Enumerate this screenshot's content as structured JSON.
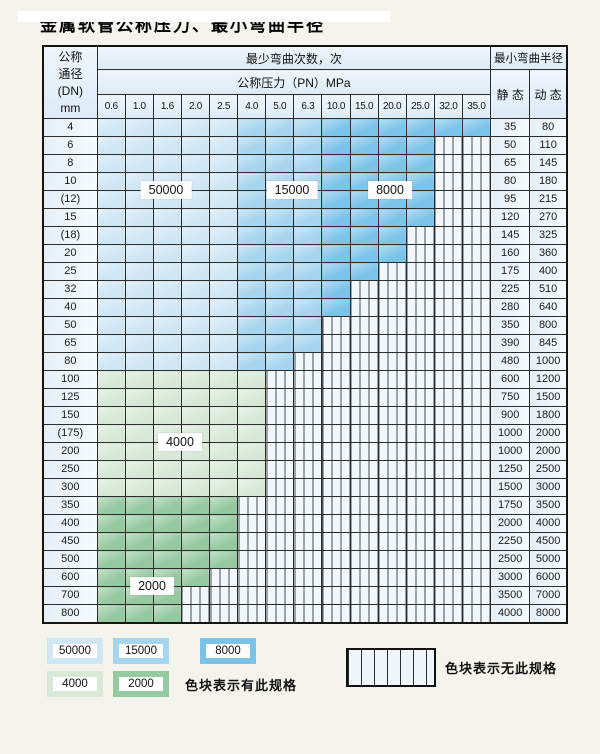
{
  "title": "金属软管公称压力、最小弯曲半径",
  "colors": {
    "50000": "#cfe6f5",
    "15000": "#a6d5ef",
    "8000": "#7cc3e9",
    "4000": "#d7e9d6",
    "2000": "#95c9a0",
    "grid_line": "#2c2c2c",
    "hatch_bg": "#f2f7fc"
  },
  "table": {
    "corner": {
      "line1": "公称",
      "line2": "通径",
      "line3": "(DN)",
      "line4": "mm"
    },
    "bend_cycles_header": "最少弯曲次数，次",
    "pressure_header": "公称压力（PN）MPa",
    "radius_header": "最小弯曲半径",
    "static_header": "静 态",
    "dynamic_header": "动 态",
    "pressure_columns": [
      "0.6",
      "1.0",
      "1.6",
      "2.0",
      "2.5",
      "4.0",
      "5.0",
      "6.3",
      "10.0",
      "15.0",
      "20.0",
      "25.0",
      "32.0",
      "35.0"
    ],
    "blue_zones": [
      {
        "upto": 4,
        "cycles": "50000"
      },
      {
        "upto": 7,
        "cycles": "15000"
      },
      {
        "upto": 13,
        "cycles": "8000"
      }
    ],
    "rows": [
      {
        "dn": "4",
        "max": 13,
        "zone": "blue",
        "static": "35",
        "dynamic": "80"
      },
      {
        "dn": "6",
        "max": 11,
        "zone": "blue",
        "static": "50",
        "dynamic": "110"
      },
      {
        "dn": "8",
        "max": 11,
        "zone": "blue",
        "static": "65",
        "dynamic": "145"
      },
      {
        "dn": "10",
        "max": 11,
        "zone": "blue",
        "static": "80",
        "dynamic": "180"
      },
      {
        "dn": "(12)",
        "max": 11,
        "zone": "blue",
        "static": "95",
        "dynamic": "215"
      },
      {
        "dn": "15",
        "max": 11,
        "zone": "blue",
        "static": "120",
        "dynamic": "270"
      },
      {
        "dn": "(18)",
        "max": 10,
        "zone": "blue",
        "static": "145",
        "dynamic": "325"
      },
      {
        "dn": "20",
        "max": 10,
        "zone": "blue",
        "static": "160",
        "dynamic": "360"
      },
      {
        "dn": "25",
        "max": 9,
        "zone": "blue",
        "static": "175",
        "dynamic": "400"
      },
      {
        "dn": "32",
        "max": 8,
        "zone": "blue",
        "static": "225",
        "dynamic": "510"
      },
      {
        "dn": "40",
        "max": 8,
        "zone": "blue",
        "static": "280",
        "dynamic": "640"
      },
      {
        "dn": "50",
        "max": 7,
        "zone": "blue",
        "static": "350",
        "dynamic": "800"
      },
      {
        "dn": "65",
        "max": 7,
        "zone": "blue",
        "static": "390",
        "dynamic": "845"
      },
      {
        "dn": "80",
        "max": 6,
        "zone": "blue",
        "static": "480",
        "dynamic": "1000"
      },
      {
        "dn": "100",
        "max": 5,
        "zone": "4000",
        "static": "600",
        "dynamic": "1200"
      },
      {
        "dn": "125",
        "max": 5,
        "zone": "4000",
        "static": "750",
        "dynamic": "1500"
      },
      {
        "dn": "150",
        "max": 5,
        "zone": "4000",
        "static": "900",
        "dynamic": "1800"
      },
      {
        "dn": "(175)",
        "max": 5,
        "zone": "4000",
        "static": "1000",
        "dynamic": "2000"
      },
      {
        "dn": "200",
        "max": 5,
        "zone": "4000",
        "static": "1000",
        "dynamic": "2000"
      },
      {
        "dn": "250",
        "max": 5,
        "zone": "4000",
        "static": "1250",
        "dynamic": "2500"
      },
      {
        "dn": "300",
        "max": 5,
        "zone": "4000",
        "static": "1500",
        "dynamic": "3000"
      },
      {
        "dn": "350",
        "max": 4,
        "zone": "2000",
        "static": "1750",
        "dynamic": "3500"
      },
      {
        "dn": "400",
        "max": 4,
        "zone": "2000",
        "static": "2000",
        "dynamic": "4000"
      },
      {
        "dn": "450",
        "max": 4,
        "zone": "2000",
        "static": "2250",
        "dynamic": "4500"
      },
      {
        "dn": "500",
        "max": 4,
        "zone": "2000",
        "static": "2500",
        "dynamic": "5000"
      },
      {
        "dn": "600",
        "max": 3,
        "zone": "2000",
        "static": "3000",
        "dynamic": "6000"
      },
      {
        "dn": "700",
        "max": 2,
        "zone": "2000",
        "static": "3500",
        "dynamic": "7000"
      },
      {
        "dn": "800",
        "max": 2,
        "zone": "2000",
        "static": "4000",
        "dynamic": "8000"
      }
    ]
  },
  "zone_labels": [
    {
      "text": "50000",
      "row": 4,
      "col": 2.5
    },
    {
      "text": "15000",
      "row": 4,
      "col": 7
    },
    {
      "text": "8000",
      "row": 4,
      "col": 10.5
    },
    {
      "text": "4000",
      "row": 18,
      "col": 3
    },
    {
      "text": "2000",
      "row": 26,
      "col": 2
    }
  ],
  "legend": {
    "items": [
      {
        "label": "50000",
        "cycles": "50000"
      },
      {
        "label": "15000",
        "cycles": "15000"
      },
      {
        "label": "8000",
        "cycles": "8000"
      },
      {
        "label": "4000",
        "cycles": "4000"
      },
      {
        "label": "2000",
        "cycles": "2000"
      }
    ],
    "has_spec_text": "色块表示有此规格",
    "no_spec_text": "色块表示无此规格"
  }
}
